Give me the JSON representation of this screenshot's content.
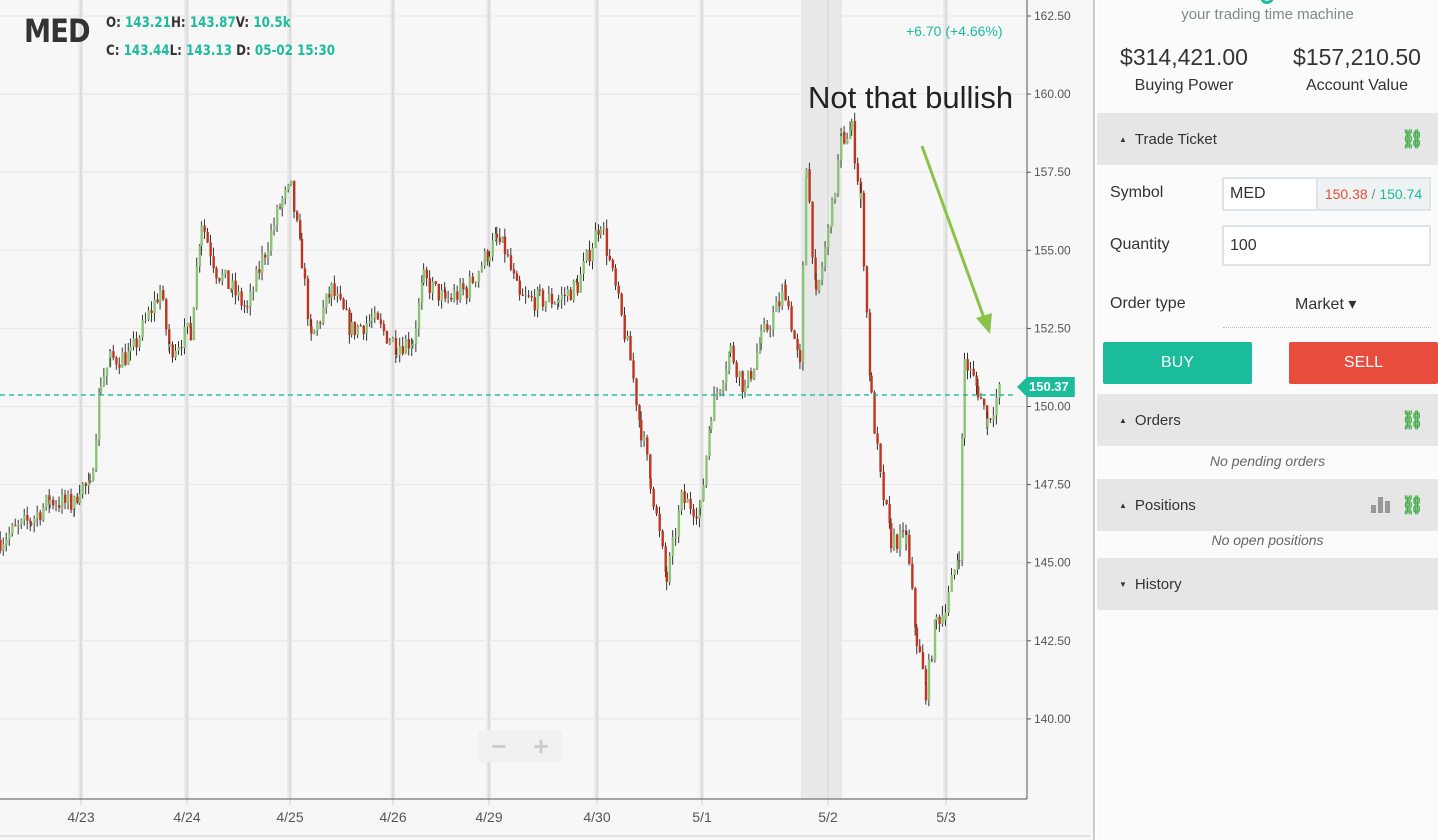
{
  "chart": {
    "symbol": "MED",
    "ohlc": {
      "o_label": "O:",
      "o": "143.21",
      "h_label": "H:",
      "h": "143.87",
      "v_label": "V:",
      "v": "10.5k",
      "c_label": "C:",
      "c": "143.44",
      "l_label": "L:",
      "l": "143.13",
      "d_label": "D:",
      "d": "05-02 15:30"
    },
    "change": "+6.70 (+4.66%)",
    "annotation": "Not that bullish",
    "current_price_label": "150.37",
    "zoom_out": "−",
    "zoom_in": "+",
    "colors": {
      "up": "#8cc47a",
      "down": "#c0341d",
      "accent": "#1abc9c",
      "arrow": "#8bc34a"
    }
  },
  "chart_data": {
    "type": "candlestick",
    "y_ticks": [
      "162.50",
      "160.00",
      "157.50",
      "155.00",
      "152.50",
      "150.00",
      "147.50",
      "145.00",
      "142.50",
      "140.00"
    ],
    "ylim": [
      137.5,
      163
    ],
    "x_ticks": [
      "4/23",
      "4/24",
      "4/25",
      "4/26",
      "4/29",
      "4/30",
      "5/1",
      "5/2",
      "5/3"
    ],
    "current_price": 150.37,
    "grid": true,
    "close_path": [
      [
        "4/22 11:00",
        145.73
      ],
      [
        "4/22 12:55",
        146.37
      ],
      [
        "4/22 14:05",
        147.0
      ],
      [
        "4/22 15:35",
        146.85
      ],
      [
        "4/22 15:55",
        147.49
      ],
      [
        "4/23 10:00",
        147.33
      ],
      [
        "4/23 10:40",
        150.85
      ],
      [
        "4/23 11:15",
        151.49
      ],
      [
        "4/23 12:30",
        151.65
      ],
      [
        "4/23 14:20",
        153.73
      ],
      [
        "4/23 14:55",
        151.81
      ],
      [
        "4/24 09:40",
        152.45
      ],
      [
        "4/24 10:20",
        155.97
      ],
      [
        "4/24 11:15",
        154.37
      ],
      [
        "4/24 12:15",
        153.73
      ],
      [
        "4/24 13:10",
        153.09
      ],
      [
        "4/24 14:05",
        154.69
      ],
      [
        "4/24 15:20",
        156.61
      ],
      [
        "4/25 09:30",
        156.93
      ],
      [
        "4/25 10:10",
        154.69
      ],
      [
        "4/25 10:45",
        152.13
      ],
      [
        "4/25 12:00",
        153.73
      ],
      [
        "4/25 13:15",
        152.45
      ],
      [
        "4/25 14:30",
        152.77
      ],
      [
        "4/26 09:40",
        151.97
      ],
      [
        "4/26 10:40",
        152.13
      ],
      [
        "4/26 11:20",
        154.05
      ],
      [
        "4/26 12:40",
        153.41
      ],
      [
        "4/26 14:00",
        153.73
      ],
      [
        "4/26 15:25",
        155.01
      ],
      [
        "4/29 09:55",
        155.33
      ],
      [
        "4/29 10:25",
        155.01
      ],
      [
        "4/29 11:20",
        153.41
      ],
      [
        "4/29 12:35",
        153.41
      ],
      [
        "4/29 13:45",
        153.41
      ],
      [
        "4/29 14:55",
        153.89
      ],
      [
        "4/30 09:40",
        155.97
      ],
      [
        "4/30 10:35",
        153.73
      ],
      [
        "4/30 11:30",
        151.49
      ],
      [
        "4/30 12:10",
        149.25
      ],
      [
        "4/30 12:45",
        147.65
      ],
      [
        "4/30 13:45",
        144.45
      ],
      [
        "4/30 14:40",
        147.01
      ],
      [
        "4/30 15:50",
        146.69
      ],
      [
        "5/1 09:55",
        149.89
      ],
      [
        "5/1 10:55",
        151.81
      ],
      [
        "5/1 11:40",
        150.53
      ],
      [
        "5/1 12:30",
        152.13
      ],
      [
        "5/1 13:45",
        153.73
      ],
      [
        "5/1 14:30",
        151.17
      ],
      [
        "5/1 14:50",
        157.89
      ],
      [
        "5/1 15:20",
        153.41
      ],
      [
        "5/2 09:40",
        156.29
      ],
      [
        "5/2 10:10",
        158.53
      ],
      [
        "5/2 10:45",
        158.85
      ],
      [
        "5/2 11:15",
        156.61
      ],
      [
        "5/2 11:50",
        150.21
      ],
      [
        "5/2 12:20",
        147.65
      ],
      [
        "5/2 12:55",
        145.73
      ],
      [
        "5/2 13:45",
        145.73
      ],
      [
        "5/2 14:20",
        142.53
      ],
      [
        "5/2 14:50",
        140.93
      ],
      [
        "5/2 15:25",
        143.17
      ],
      [
        "5/2 15:55",
        143.49
      ],
      [
        "5/3 10:15",
        145.41
      ],
      [
        "5/3 10:35",
        151.49
      ],
      [
        "5/3 11:25",
        150.53
      ],
      [
        "5/3 12:00",
        149.57
      ],
      [
        "5/3 12:55",
        150.69
      ]
    ]
  },
  "panel": {
    "tagline": "your trading time machine",
    "buying_power": "$314,421.00",
    "buying_power_label": "Buying Power",
    "account_value": "$157,210.50",
    "account_value_label": "Account Value",
    "trade_ticket": {
      "title": "Trade Ticket",
      "symbol_label": "Symbol",
      "symbol_value": "MED",
      "bid": "150.38",
      "sep": " / ",
      "ask": "150.74",
      "quantity_label": "Quantity",
      "quantity_value": "100",
      "order_type_label": "Order type",
      "order_type_value": "Market ▾",
      "buy": "BUY",
      "sell": "SELL"
    },
    "orders": {
      "title": "Orders",
      "empty": "No pending orders"
    },
    "positions": {
      "title": "Positions",
      "empty": "No open positions"
    },
    "history": {
      "title": "History"
    }
  }
}
